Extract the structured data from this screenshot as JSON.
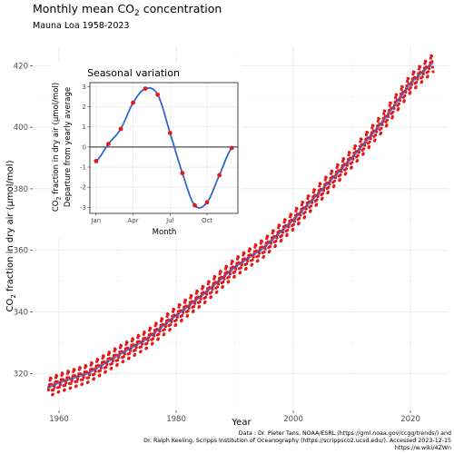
{
  "title": "Monthly mean CO",
  "title_subscript": "2",
  "title_suffix": " concentration",
  "subtitle": "Mauna Loa 1958-2023",
  "caption": [
    "Data : Dr. Pieter Tans, NOAA/ESRL (https://gml.noaa.gov/ccgg/trends/) and",
    "Dr. Ralph Keeling, Scripps Institution of Oceanography (https://scrippsco2.ucsd.edu/). Accessed  2023-12-15",
    "https://w.wiki/4ZWn"
  ],
  "colors": {
    "points": "#e31a1c",
    "trend": "#3366cc",
    "grid_major": "#ebebeb",
    "grid_minor": "#f5f5f5",
    "panel_border": "#333333"
  },
  "chart_data": [
    {
      "id": "main",
      "type": "scatter",
      "xlabel": "Year",
      "ylabel_prefix": "CO",
      "ylabel_sub": "2",
      "ylabel_suffix": " fraction in dry air (µmol/mol)",
      "xlim": [
        1955.5,
        2026.5
      ],
      "ylim": [
        308,
        426
      ],
      "xticks": [
        1960,
        1980,
        2000,
        2020
      ],
      "yticks": [
        320,
        340,
        360,
        380,
        400,
        420
      ],
      "grid": true,
      "series": [
        {
          "kind": "points",
          "x_range": [
            1958.2,
            2023.9
          ],
          "baseline_points": [
            [
              1958,
              315.2
            ],
            [
              1960,
              316.9
            ],
            [
              1965,
              320.0
            ],
            [
              1970,
              325.7
            ],
            [
              1975,
              331.1
            ],
            [
              1980,
              338.7
            ],
            [
              1985,
              346.1
            ],
            [
              1990,
              354.4
            ],
            [
              1995,
              360.8
            ],
            [
              2000,
              369.7
            ],
            [
              2005,
              379.8
            ],
            [
              2010,
              389.9
            ],
            [
              2015,
              401.0
            ],
            [
              2020,
              414.2
            ],
            [
              2023.9,
              421.0
            ]
          ],
          "seasonal_amplitude": 3.0
        },
        {
          "kind": "trend-line",
          "x": [
            1958,
            1960,
            1965,
            1970,
            1975,
            1980,
            1985,
            1990,
            1995,
            2000,
            2005,
            2010,
            2015,
            2020,
            2023.9
          ],
          "values": [
            315.2,
            316.9,
            320.0,
            325.7,
            331.1,
            338.7,
            346.1,
            354.4,
            360.8,
            369.7,
            379.8,
            389.9,
            401.0,
            414.2,
            421.0
          ]
        }
      ]
    },
    {
      "id": "inset",
      "type": "line",
      "title": "Seasonal variation",
      "xlabel": "Month",
      "ylabel_line1_prefix": "CO",
      "ylabel_line1_sub": "2",
      "ylabel_line1_suffix": " fraction in dry air (µmol/mol)",
      "ylabel_line2": "Departure from yearly average",
      "xlim": [
        0.5,
        12.5
      ],
      "ylim": [
        -3.3,
        3.2
      ],
      "xticks": [
        1,
        4,
        7,
        10
      ],
      "xtick_labels": [
        "Jan",
        "Apr",
        "Jul",
        "Oct"
      ],
      "yticks": [
        -3,
        -2,
        -1,
        0,
        1,
        2,
        3
      ],
      "months": [
        1,
        2,
        3,
        4,
        5,
        6,
        7,
        8,
        9,
        10,
        11,
        12
      ],
      "values": [
        -0.7,
        0.15,
        0.9,
        2.2,
        2.9,
        2.6,
        0.7,
        -1.3,
        -2.9,
        -2.75,
        -1.4,
        -0.05
      ],
      "zero_line": true,
      "grid": true
    }
  ]
}
